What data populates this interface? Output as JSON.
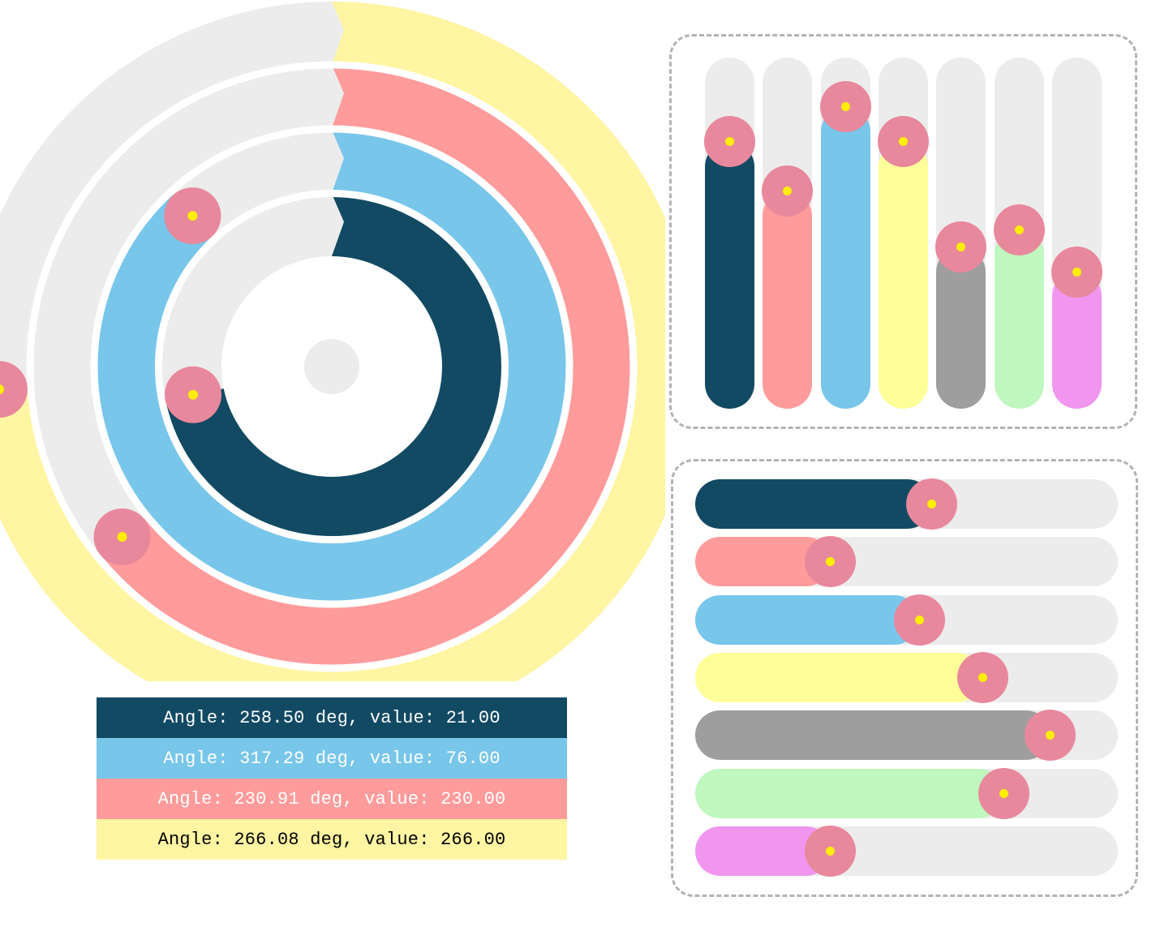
{
  "colors": {
    "track": "#ececec",
    "handle": "#e8889c",
    "handle_dot": "#ffee00",
    "panel_border": "#b3b3b3"
  },
  "radial_rings": [
    {
      "name": "dark-navy",
      "color": "#124a63",
      "angle_deg": 258.5,
      "value": 21.0
    },
    {
      "name": "sky-blue",
      "color": "#78c6ea",
      "angle_deg": 317.29,
      "value": 76.0
    },
    {
      "name": "salmon",
      "color": "#ff9b9b",
      "angle_deg": 230.91,
      "value": 230.0
    },
    {
      "name": "light-yellow",
      "color": "#fff5a2",
      "angle_deg": 266.08,
      "value": 266.0
    }
  ],
  "readouts": [
    {
      "text": "Angle: 258.50 deg, value: 21.00",
      "bg": "#124a63",
      "fg": "#ffffff"
    },
    {
      "text": "Angle: 317.29 deg, value: 76.00",
      "bg": "#78c6ea",
      "fg": "#ffffff"
    },
    {
      "text": "Angle: 230.91 deg, value: 230.00",
      "bg": "#ff9b9b",
      "fg": "#ffffff"
    },
    {
      "text": "Angle: 266.08 deg, value: 266.00",
      "bg": "#fff5a2",
      "fg": "#000000"
    }
  ],
  "vertical_sliders": [
    {
      "color": "#124a63",
      "level": 0.76
    },
    {
      "color": "#ff9b9b",
      "level": 0.62
    },
    {
      "color": "#78c6ea",
      "level": 0.86
    },
    {
      "color": "#ffff99",
      "level": 0.76
    },
    {
      "color": "#9e9e9e",
      "level": 0.46
    },
    {
      "color": "#bff7bf",
      "level": 0.51
    },
    {
      "color": "#f096ef",
      "level": 0.39
    }
  ],
  "horizontal_sliders": [
    {
      "color": "#124a63",
      "level": 0.56
    },
    {
      "color": "#ff9b9b",
      "level": 0.32
    },
    {
      "color": "#78c6ea",
      "level": 0.53
    },
    {
      "color": "#ffff99",
      "level": 0.68
    },
    {
      "color": "#9e9e9e",
      "level": 0.84
    },
    {
      "color": "#bff7bf",
      "level": 0.73
    },
    {
      "color": "#f096ef",
      "level": 0.32
    }
  ]
}
